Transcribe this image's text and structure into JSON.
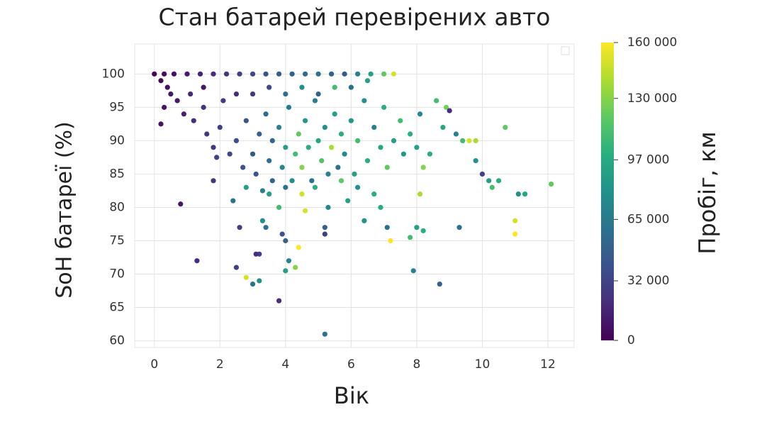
{
  "chart_data": {
    "type": "scatter",
    "title": "Стан батарей перевірених авто",
    "x_label": "Вік",
    "y_label": "SoH батареї (%)",
    "colorbar_label": "Пробіг, км",
    "colormap": "viridis",
    "grid": true,
    "xlim": [
      -0.6,
      12.8
    ],
    "ylim": [
      59,
      104.5
    ],
    "xticks": [
      0,
      2,
      4,
      6,
      8,
      10,
      12
    ],
    "yticks": [
      60,
      65,
      70,
      75,
      80,
      85,
      90,
      95,
      100
    ],
    "clim": [
      0,
      160000
    ],
    "cticks": [
      0,
      {
        "value": 32000,
        "label": "32 000"
      },
      {
        "value": 65000,
        "label": "65 000"
      },
      {
        "value": 97000,
        "label": "97 000"
      },
      {
        "value": 130000,
        "label": "130 000"
      },
      {
        "value": 160000,
        "label": "160 000"
      }
    ],
    "x": [
      0,
      0.3,
      0.6,
      1,
      1.4,
      1.8,
      2.2,
      2.6,
      3,
      3.4,
      3.8,
      4.2,
      4.6,
      5,
      5.4,
      5.8,
      6.2,
      6.6,
      7,
      7.3,
      0.2,
      0.4,
      0.5,
      0.3,
      0.2,
      0.7,
      0.9,
      1.1,
      1.2,
      1.5,
      1.6,
      1.8,
      2,
      2.1,
      1.9,
      2.3,
      2.5,
      2.7,
      2.8,
      3,
      3.1,
      3.2,
      3.4,
      3.5,
      3.6,
      3.8,
      3.9,
      4,
      4.1,
      4.2,
      4.3,
      4.4,
      4.5,
      4.6,
      4.7,
      4.8,
      4.9,
      5,
      5.1,
      5.2,
      5.3,
      5.4,
      5.5,
      5.6,
      5.7,
      5.8,
      6,
      6.1,
      6.2,
      6.4,
      6.5,
      6.7,
      6.9,
      7,
      7.1,
      7.3,
      7.5,
      7.6,
      7.8,
      8,
      8.1,
      8.2,
      8.4,
      8.6,
      8.8,
      8.9,
      9,
      9.2,
      9.4,
      9.6,
      9.8,
      9.8,
      10,
      10.2,
      10.3,
      10.5,
      10.7,
      11.1,
      11.3,
      12.1,
      11,
      11,
      9.3,
      8.7,
      7.9,
      8,
      8.2,
      7.8,
      7.2,
      7.1,
      8.1,
      6.4,
      6.9,
      5.9,
      5.3,
      5.2,
      5.2,
      5.2,
      4.6,
      4.4,
      4.3,
      4.1,
      4,
      4,
      3.9,
      3.8,
      3.4,
      3.3,
      3.2,
      3.1,
      3.2,
      3,
      2.8,
      2.5,
      2.6,
      2.4,
      1.3,
      0.8,
      1.8,
      3.5,
      3.8,
      4.5,
      4.9,
      5.7,
      6.2,
      6.7,
      2.8,
      3.3,
      3.6,
      4,
      3,
      3.5,
      4,
      4.5,
      5,
      5.5,
      2.5,
      1.5,
      6,
      6.5
    ],
    "values": [
      100,
      100,
      100,
      100,
      100,
      100,
      100,
      100,
      100,
      100,
      100,
      100,
      100,
      100,
      100,
      100,
      100,
      100,
      100,
      100,
      99,
      98,
      97,
      95,
      92.5,
      96,
      94,
      97,
      93,
      95,
      91,
      89,
      92,
      96,
      87.5,
      88,
      90,
      86,
      93,
      88,
      85,
      91,
      94,
      87,
      90,
      92,
      86,
      89,
      95,
      84,
      88,
      91,
      86,
      93,
      89,
      84,
      96,
      90,
      87,
      92,
      85,
      89,
      94,
      86,
      91,
      88,
      93,
      85,
      90,
      96,
      87,
      92,
      89,
      95,
      86,
      90,
      93,
      88,
      91,
      89,
      94,
      86,
      88,
      96,
      92,
      95,
      94.5,
      91,
      90,
      90,
      90,
      87,
      85,
      84,
      83,
      84,
      92,
      82,
      82,
      83.5,
      78,
      76,
      77,
      68.5,
      70.5,
      77,
      76.5,
      75.5,
      75,
      77,
      82,
      78,
      80,
      81,
      80,
      77,
      76,
      61,
      79.5,
      74,
      71,
      72,
      70.5,
      75,
      76,
      66,
      77,
      78,
      73,
      73,
      69,
      68.5,
      69.5,
      71,
      77,
      81,
      72,
      80.5,
      84,
      82,
      80,
      82,
      83,
      84,
      83,
      82,
      83,
      82.5,
      84,
      83,
      97,
      98,
      97,
      98,
      97,
      98,
      97,
      98,
      98,
      99
    ],
    "color_values": [
      2000,
      5000,
      8000,
      12000,
      15000,
      20000,
      25000,
      30000,
      35000,
      40000,
      45000,
      50000,
      55000,
      60000,
      50000,
      45000,
      70000,
      90000,
      120000,
      150000,
      3000,
      6000,
      10000,
      9000,
      8000,
      12000,
      15000,
      18000,
      20000,
      22000,
      26000,
      25000,
      30000,
      28000,
      30000,
      35000,
      38000,
      40000,
      42000,
      45000,
      40000,
      50000,
      55000,
      60000,
      52000,
      70000,
      75000,
      90000,
      65000,
      80000,
      110000,
      120000,
      130000,
      85000,
      100000,
      60000,
      70000,
      95000,
      115000,
      80000,
      70000,
      140000,
      90000,
      60000,
      100000,
      75000,
      85000,
      90000,
      110000,
      80000,
      100000,
      70000,
      95000,
      100000,
      120000,
      90000,
      110000,
      85000,
      100000,
      90000,
      75000,
      130000,
      100000,
      110000,
      95000,
      125000,
      20000,
      70000,
      110000,
      150000,
      140000,
      80000,
      30000,
      90000,
      110000,
      100000,
      120000,
      80000,
      95000,
      120000,
      150000,
      160000,
      60000,
      50000,
      70000,
      90000,
      100000,
      110000,
      160000,
      60000,
      140000,
      80000,
      100000,
      90000,
      75000,
      50000,
      30000,
      60000,
      150000,
      160000,
      130000,
      70000,
      90000,
      50000,
      40000,
      20000,
      60000,
      80000,
      30000,
      20000,
      80000,
      60000,
      150000,
      30000,
      30000,
      60000,
      20000,
      10000,
      25000,
      90000,
      110000,
      150000,
      100000,
      120000,
      80000,
      100000,
      90000,
      70000,
      50000,
      60000,
      25000,
      35000,
      60000,
      80000,
      50000,
      110000,
      20000,
      10000,
      60000,
      90000
    ]
  }
}
